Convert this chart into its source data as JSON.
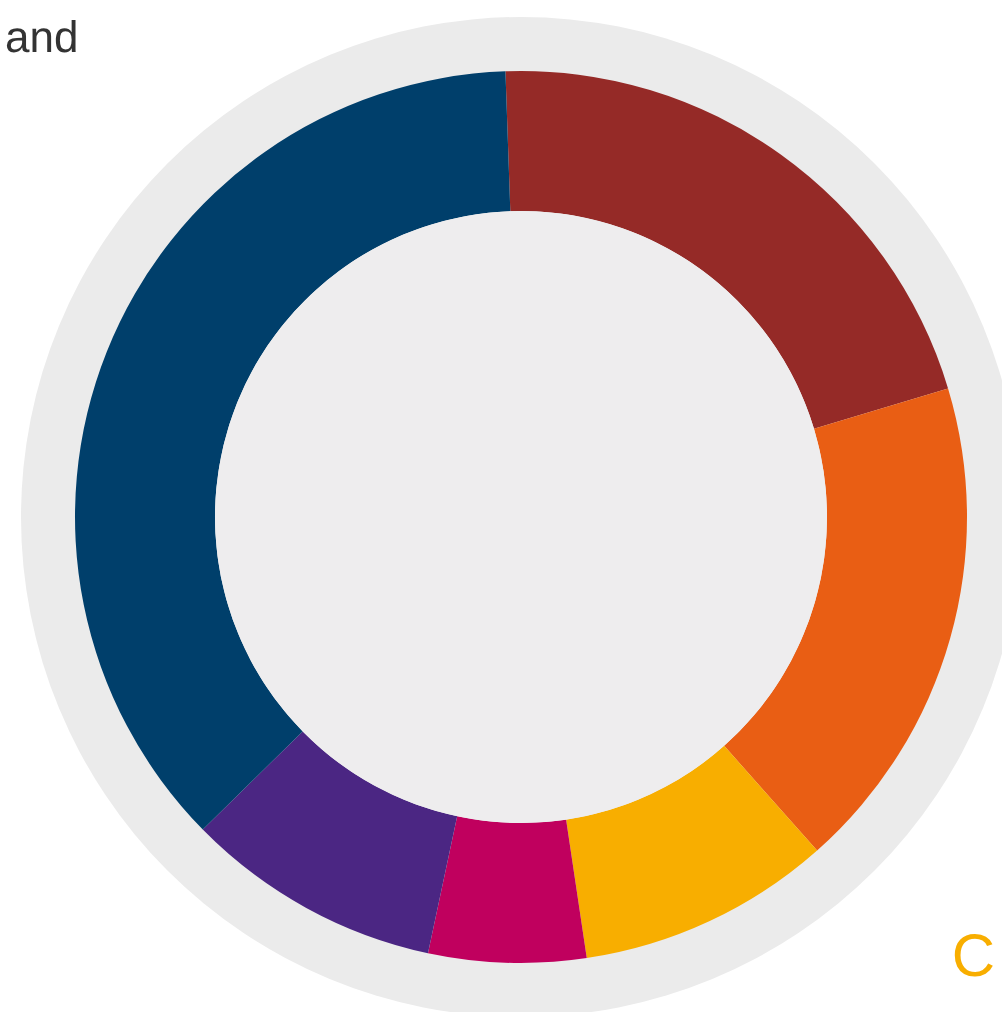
{
  "chart_data": {
    "type": "donut",
    "categories": [
      null,
      null,
      null,
      null,
      null,
      null
    ],
    "values": [
      20.9,
      18.1,
      9.2,
      5.7,
      9.3,
      36.8
    ],
    "colors": [
      "#952a27",
      "#e95e14",
      "#f8ae00",
      "#c0005e",
      "#4b2683",
      "#003f6b"
    ],
    "annotations": [
      "and",
      "C"
    ]
  }
}
